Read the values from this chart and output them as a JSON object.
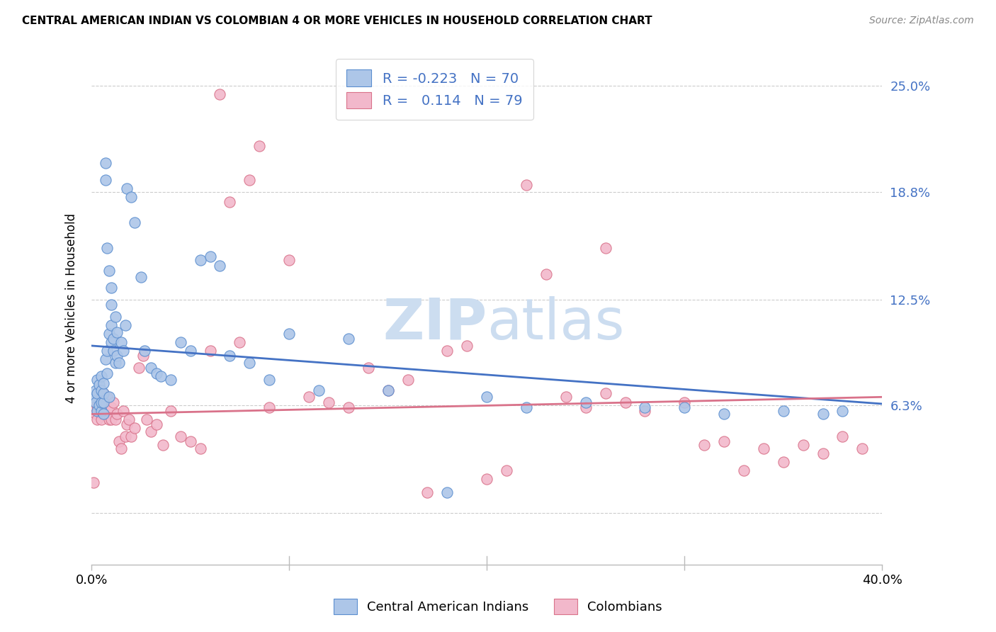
{
  "title": "CENTRAL AMERICAN INDIAN VS COLOMBIAN 4 OR MORE VEHICLES IN HOUSEHOLD CORRELATION CHART",
  "source": "Source: ZipAtlas.com",
  "ylabel": "4 or more Vehicles in Household",
  "yticks": [
    0.0,
    0.063,
    0.125,
    0.188,
    0.25
  ],
  "ytick_labels": [
    "",
    "6.3%",
    "12.5%",
    "18.8%",
    "25.0%"
  ],
  "xlim": [
    0.0,
    0.4
  ],
  "ylim": [
    -0.03,
    0.27
  ],
  "blue_R": -0.223,
  "blue_N": 70,
  "pink_R": 0.114,
  "pink_N": 79,
  "blue_color": "#adc6e8",
  "pink_color": "#f2b8cb",
  "blue_edge_color": "#5b8ecf",
  "pink_edge_color": "#d9728a",
  "blue_line_color": "#4472c4",
  "pink_line_color": "#d9728a",
  "blue_label": "Central American Indians",
  "pink_label": "Colombians",
  "legend_R_color": "#4472c4",
  "watermark_color": "#ccddf0",
  "blue_line_intercept": 0.098,
  "blue_line_slope": -0.085,
  "pink_line_intercept": 0.058,
  "pink_line_slope": 0.025,
  "blue_x": [
    0.001,
    0.002,
    0.002,
    0.003,
    0.003,
    0.003,
    0.004,
    0.004,
    0.005,
    0.005,
    0.005,
    0.005,
    0.006,
    0.006,
    0.006,
    0.006,
    0.007,
    0.007,
    0.007,
    0.008,
    0.008,
    0.009,
    0.009,
    0.01,
    0.01,
    0.01,
    0.011,
    0.011,
    0.012,
    0.012,
    0.013,
    0.013,
    0.014,
    0.015,
    0.016,
    0.017,
    0.018,
    0.02,
    0.022,
    0.025,
    0.027,
    0.03,
    0.033,
    0.035,
    0.04,
    0.045,
    0.05,
    0.055,
    0.06,
    0.065,
    0.07,
    0.08,
    0.09,
    0.1,
    0.115,
    0.13,
    0.15,
    0.18,
    0.2,
    0.22,
    0.25,
    0.28,
    0.3,
    0.32,
    0.35,
    0.37,
    0.38,
    0.008,
    0.009,
    0.01
  ],
  "blue_y": [
    0.068,
    0.065,
    0.072,
    0.06,
    0.07,
    0.078,
    0.063,
    0.075,
    0.06,
    0.065,
    0.072,
    0.08,
    0.058,
    0.065,
    0.07,
    0.076,
    0.195,
    0.205,
    0.09,
    0.095,
    0.082,
    0.068,
    0.105,
    0.1,
    0.11,
    0.122,
    0.095,
    0.102,
    0.115,
    0.088,
    0.092,
    0.106,
    0.088,
    0.1,
    0.095,
    0.11,
    0.19,
    0.185,
    0.17,
    0.138,
    0.095,
    0.085,
    0.082,
    0.08,
    0.078,
    0.1,
    0.095,
    0.148,
    0.15,
    0.145,
    0.092,
    0.088,
    0.078,
    0.105,
    0.072,
    0.102,
    0.072,
    0.012,
    0.068,
    0.062,
    0.065,
    0.062,
    0.062,
    0.058,
    0.06,
    0.058,
    0.06,
    0.155,
    0.142,
    0.132
  ],
  "pink_x": [
    0.001,
    0.001,
    0.002,
    0.002,
    0.003,
    0.003,
    0.004,
    0.004,
    0.005,
    0.005,
    0.005,
    0.006,
    0.006,
    0.007,
    0.007,
    0.008,
    0.008,
    0.009,
    0.009,
    0.01,
    0.01,
    0.011,
    0.012,
    0.013,
    0.014,
    0.015,
    0.016,
    0.017,
    0.018,
    0.019,
    0.02,
    0.022,
    0.024,
    0.026,
    0.028,
    0.03,
    0.033,
    0.036,
    0.04,
    0.045,
    0.05,
    0.055,
    0.06,
    0.065,
    0.07,
    0.075,
    0.08,
    0.085,
    0.09,
    0.1,
    0.11,
    0.12,
    0.13,
    0.14,
    0.15,
    0.16,
    0.17,
    0.18,
    0.19,
    0.2,
    0.21,
    0.22,
    0.23,
    0.24,
    0.25,
    0.26,
    0.27,
    0.28,
    0.3,
    0.32,
    0.34,
    0.36,
    0.37,
    0.39,
    0.31,
    0.33,
    0.35,
    0.38,
    0.26
  ],
  "pink_y": [
    0.062,
    0.018,
    0.058,
    0.065,
    0.055,
    0.063,
    0.065,
    0.06,
    0.058,
    0.068,
    0.055,
    0.062,
    0.07,
    0.058,
    0.065,
    0.062,
    0.068,
    0.055,
    0.06,
    0.055,
    0.062,
    0.065,
    0.055,
    0.058,
    0.042,
    0.038,
    0.06,
    0.045,
    0.052,
    0.055,
    0.045,
    0.05,
    0.085,
    0.092,
    0.055,
    0.048,
    0.052,
    0.04,
    0.06,
    0.045,
    0.042,
    0.038,
    0.095,
    0.245,
    0.182,
    0.1,
    0.195,
    0.215,
    0.062,
    0.148,
    0.068,
    0.065,
    0.062,
    0.085,
    0.072,
    0.078,
    0.012,
    0.095,
    0.098,
    0.02,
    0.025,
    0.192,
    0.14,
    0.068,
    0.062,
    0.07,
    0.065,
    0.06,
    0.065,
    0.042,
    0.038,
    0.04,
    0.035,
    0.038,
    0.04,
    0.025,
    0.03,
    0.045,
    0.155
  ]
}
